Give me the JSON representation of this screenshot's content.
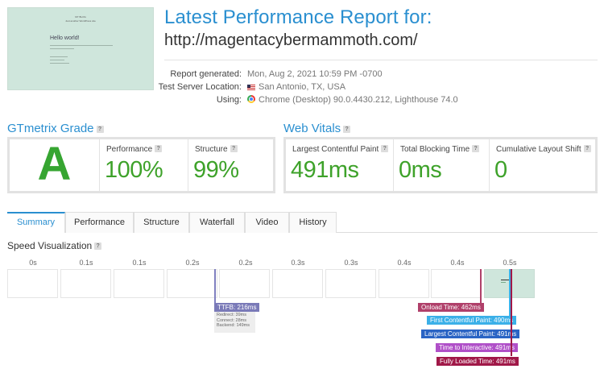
{
  "thumbnail": {
    "site_title": "MY BLOG",
    "tagline": "Just another WordPress site",
    "heading": "Hello world!"
  },
  "header": {
    "title": "Latest Performance Report for:",
    "url": "http://magentacybermammoth.com/"
  },
  "meta": {
    "report_generated_label": "Report generated:",
    "report_generated_value": "Mon, Aug 2, 2021 10:59 PM -0700",
    "location_label": "Test Server Location:",
    "location_value": "San Antonio, TX, USA",
    "using_label": "Using:",
    "using_value": "Chrome (Desktop) 90.0.4430.212, Lighthouse 74.0"
  },
  "grade": {
    "title": "GTmetrix Grade",
    "letter": "A",
    "performance_label": "Performance",
    "performance_value": "100%",
    "structure_label": "Structure",
    "structure_value": "99%"
  },
  "vitals": {
    "title": "Web Vitals",
    "lcp_label": "Largest Contentful Paint",
    "lcp_value": "491ms",
    "tbt_label": "Total Blocking Time",
    "tbt_value": "0ms",
    "cls_label": "Cumulative Layout Shift",
    "cls_value": "0"
  },
  "tabs": [
    "Summary",
    "Performance",
    "Structure",
    "Waterfall",
    "Video",
    "History"
  ],
  "active_tab": "Summary",
  "speed": {
    "title": "Speed Visualization",
    "ticks": [
      "0s",
      "0.1s",
      "0.1s",
      "0.2s",
      "0.2s",
      "0.3s",
      "0.3s",
      "0.4s",
      "0.4s",
      "0.5s"
    ],
    "ttfb": "TTFB: 216ms",
    "ttfb_redirect": "Redirect: 39ms",
    "ttfb_connect": "Connect: 28ms",
    "ttfb_backend": "Backend: 149ms",
    "onload": "Onload Time: 462ms",
    "fcp": "First Contentful Paint: 490ms",
    "lcp": "Largest Contentful Paint: 491ms",
    "tti": "Time to Interactive: 491ms",
    "fully_loaded": "Fully Loaded Time: 491ms"
  },
  "colors": {
    "accent": "#2a8fd0",
    "grade_green": "#36a531",
    "ttfb": "#7a7ab8",
    "onload": "#b0406a",
    "fcp": "#3bb0e8",
    "lcp": "#2a64c4",
    "tti": "#b050c8",
    "fully_loaded": "#a01848"
  }
}
